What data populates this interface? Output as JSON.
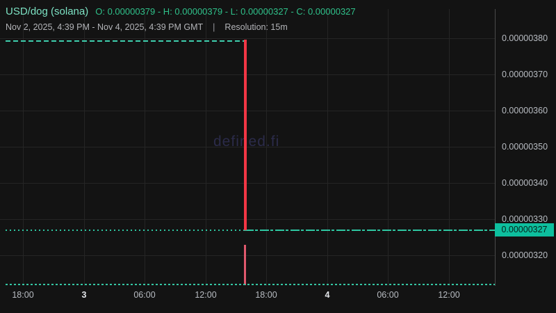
{
  "header": {
    "pair_title": "USD/dog (solana)",
    "ohlc_text": "O: 0.00000379 - H: 0.00000379 - L: 0.00000327 - C: 0.00000327",
    "date_range": "Nov 2, 2025, 4:39 PM - Nov 4, 2025, 4:39 PM GMT",
    "separator": "|",
    "resolution": "Resolution: 15m"
  },
  "watermark": "defined.fi",
  "price_axis": {
    "ticks": [
      "0.00000380",
      "0.00000370",
      "0.00000360",
      "0.00000350",
      "0.00000340",
      "0.00000330",
      "0.00000320"
    ],
    "current_price_label": "0.00000327"
  },
  "time_axis": {
    "ticks": [
      {
        "label": "18:00",
        "day_marker": false
      },
      {
        "label": "3",
        "day_marker": true
      },
      {
        "label": "06:00",
        "day_marker": false
      },
      {
        "label": "12:00",
        "day_marker": false
      },
      {
        "label": "18:00",
        "day_marker": false
      },
      {
        "label": "4",
        "day_marker": true
      },
      {
        "label": "06:00",
        "day_marker": false
      },
      {
        "label": "12:00",
        "day_marker": false
      }
    ]
  },
  "chart_data": {
    "type": "candlestick",
    "title": "USD/dog (solana)",
    "resolution": "15m",
    "visible_range": "Nov 2, 2025, 4:39 PM - Nov 4, 2025, 4:39 PM GMT",
    "ohlc_displayed": {
      "open": 3.79e-06,
      "high": 3.79e-06,
      "low": 3.27e-06,
      "close": 3.27e-06
    },
    "current_price": 3.27e-06,
    "y_axis": {
      "ticks": [
        3.8e-06,
        3.7e-06,
        3.6e-06,
        3.5e-06,
        3.4e-06,
        3.3e-06,
        3.2e-06
      ],
      "approx_range": [
        3.12e-06,
        3.88e-06
      ]
    },
    "x_axis": {
      "tick_labels": [
        "18:00",
        "3",
        "06:00",
        "12:00",
        "18:00",
        "4",
        "06:00",
        "12:00"
      ],
      "day_boundaries": [
        "Nov 3",
        "Nov 4"
      ]
    },
    "price_series": [
      {
        "segment": "flat-before-drop",
        "price": 3.79e-06,
        "from": "Nov 2 ~16:40",
        "to": "Nov 3 ~16:30",
        "style": "teal-dashed-flat-candles"
      },
      {
        "segment": "single-drop-candle",
        "open": 3.79e-06,
        "high": 3.79e-06,
        "low": 3.27e-06,
        "close": 3.27e-06,
        "time": "Nov 3 ~16:30",
        "style": "red"
      },
      {
        "segment": "flat-after-drop",
        "price": 3.27e-06,
        "from": "Nov 3 ~16:30",
        "to": "Nov 4 ~16:39",
        "style": "teal-dashed-flat-candles"
      }
    ],
    "volume_series": {
      "profile": "near-zero tiny teal bars across entire range",
      "spike": {
        "time": "Nov 3 ~16:30",
        "color": "red",
        "relative_height": "tall single bar"
      }
    },
    "grid": true,
    "legend_position": "none"
  },
  "colors": {
    "background": "#131313",
    "grid": "#252525",
    "axis_border": "#4a4a4a",
    "axis_text": "#b8bcc2",
    "title_text": "#7de3c4",
    "ohlc_text": "#2fc18a",
    "subtitle_text": "#b3b4b8",
    "candle_red": "#f23645",
    "volume_red": "#e0596d",
    "flat_line_teal": "#3ecfae",
    "price_line_teal": "#2ec7a2",
    "price_tag_bg": "#0dbf9e",
    "price_tag_text": "#06211a",
    "watermark": "#2b2b4a"
  }
}
